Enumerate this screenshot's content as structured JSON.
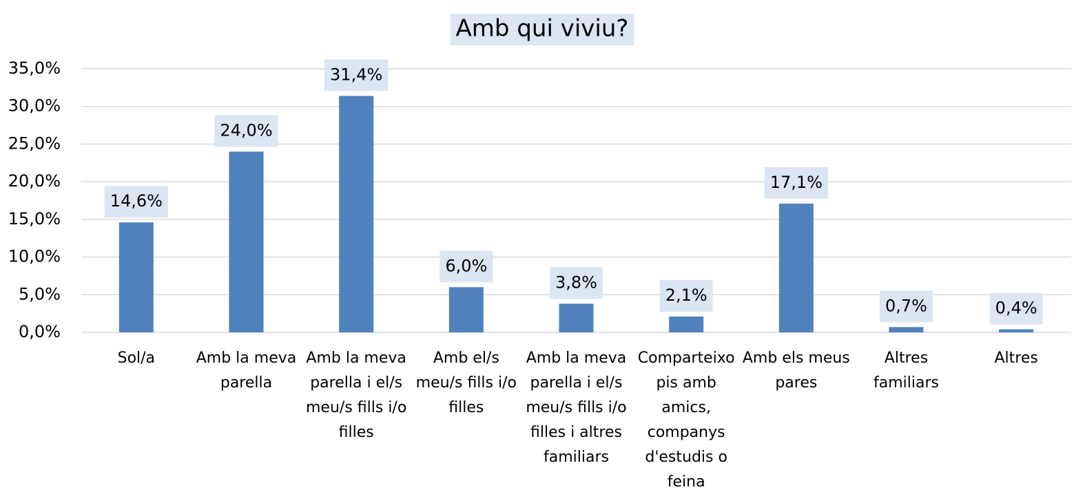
{
  "chart_data": {
    "type": "bar",
    "title": "Amb qui viviu?",
    "categories": [
      "Sol/a",
      "Amb la meva parella",
      "Amb la meva parella i el/s meu/s fills i/o filles",
      "Amb el/s meu/s fills i/o filles",
      "Amb la meva parella i el/s meu/s fills i/o filles i altres familiars",
      "Comparteixo pis amb amics, companys d'estudis o feina",
      "Amb els meus pares",
      "Altres familiars",
      "Altres"
    ],
    "values": [
      14.6,
      24.0,
      31.4,
      6.0,
      3.8,
      2.1,
      17.1,
      0.7,
      0.4
    ],
    "value_labels": [
      "14,6%",
      "24,0%",
      "31,4%",
      "6,0%",
      "3,8%",
      "2,1%",
      "17,1%",
      "0,7%",
      "0,4%"
    ],
    "color": "#4f81bd",
    "ylim": [
      0,
      35
    ],
    "yticks": [
      {
        "value": 0,
        "label": "0,0%"
      },
      {
        "value": 5,
        "label": "5,0%"
      },
      {
        "value": 10,
        "label": "10,0%"
      },
      {
        "value": 15,
        "label": "15,0%"
      },
      {
        "value": 20,
        "label": "20,0%"
      },
      {
        "value": 25,
        "label": "25,0%"
      },
      {
        "value": 30,
        "label": "30,0%"
      },
      {
        "value": 35,
        "label": "35,0%"
      }
    ],
    "grid": true
  }
}
